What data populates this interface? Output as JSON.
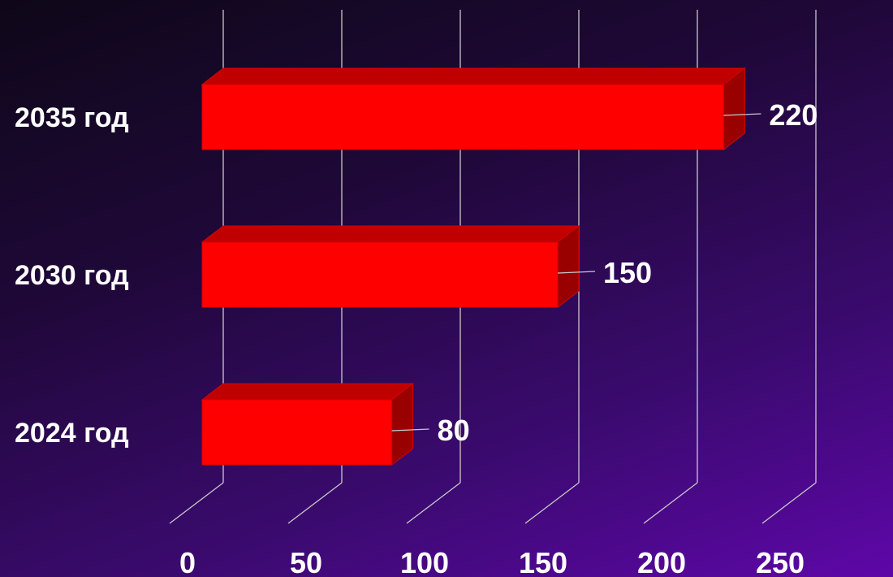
{
  "chart_data": {
    "type": "bar",
    "orientation": "horizontal",
    "style": "3d",
    "categories": [
      "2035 год",
      "2030 год",
      "2024 год"
    ],
    "values": [
      220,
      150,
      80
    ],
    "data_labels": [
      "220",
      "150",
      "80"
    ],
    "xlim": [
      0,
      250
    ],
    "xticks": [
      "0",
      "50",
      "100",
      "150",
      "200",
      "250"
    ],
    "grid": true,
    "legend": "none",
    "colors": {
      "bar_front": "#ff0000",
      "bar_top": "#c00000",
      "bar_side": "#990000",
      "grid": "#c8c8c8",
      "text": "#ffffff"
    }
  }
}
